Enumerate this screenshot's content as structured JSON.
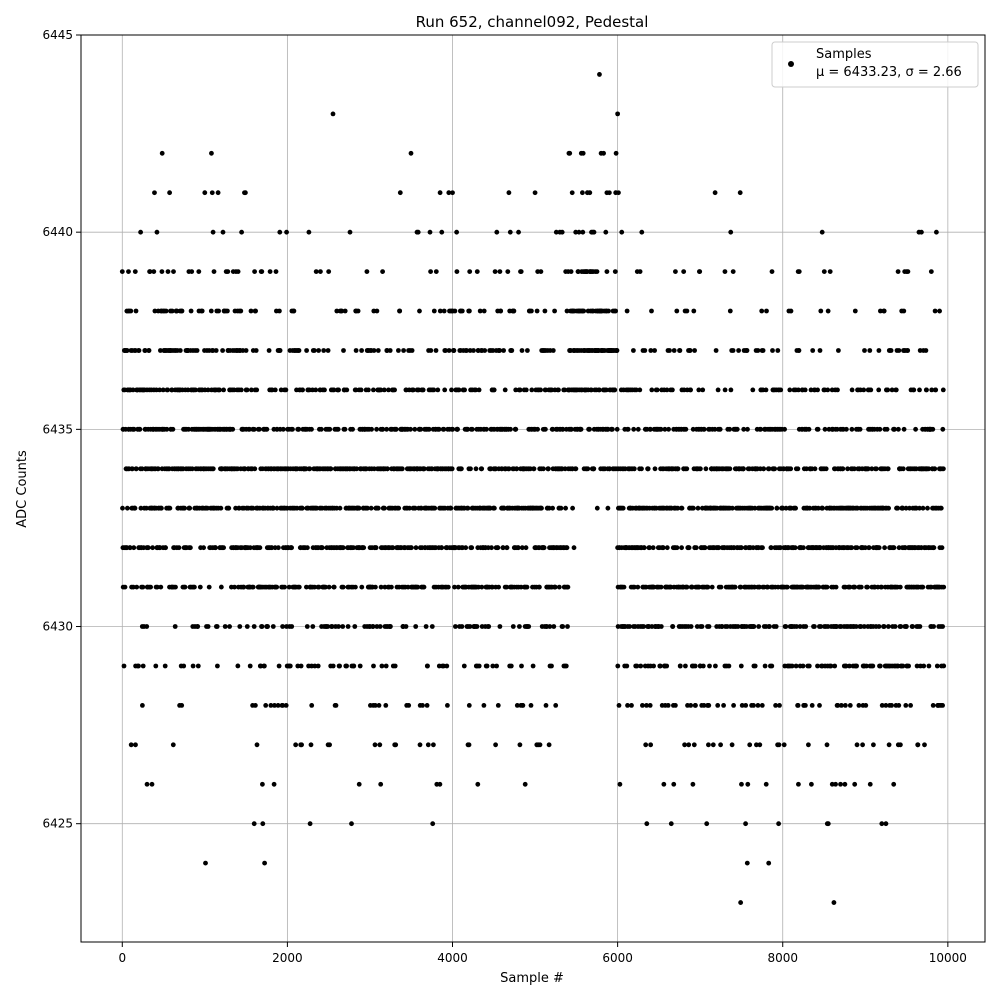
{
  "chart_data": {
    "type": "scatter",
    "title": "Run 652, channel092, Pedestal",
    "xlabel": "Sample #",
    "ylabel": "ADC Counts",
    "xlim": [
      -500,
      10450
    ],
    "ylim": [
      6422,
      6445
    ],
    "x_ticks": [
      0,
      2000,
      4000,
      6000,
      8000,
      10000
    ],
    "y_ticks": [
      6425,
      6430,
      6435,
      6440,
      6445
    ],
    "grid": true,
    "legend_position": "top-right",
    "marker_color": "#000000",
    "series": [
      {
        "name": "Samples",
        "stats_label": "μ = 6433.23, σ = 2.66",
        "mean": 6433.23,
        "std": 2.66,
        "x": [
          30,
          55,
          75,
          160,
          300,
          360,
          390,
          420,
          480,
          600,
          900,
          1000,
          1080,
          1090,
          1100,
          1120,
          1200,
          1300,
          1400,
          1480,
          1500,
          1600,
          1700,
          1800,
          1990,
          2000,
          2100,
          2400,
          2500,
          2800,
          2870,
          3000,
          3130,
          3300,
          3400,
          3570,
          3600,
          3760,
          3870,
          4000,
          4050,
          4100,
          4200,
          4300,
          4500,
          4700,
          4800,
          5000,
          5100,
          5170,
          5250,
          5300,
          5410,
          5420,
          5450,
          5560,
          5600,
          5700,
          5760,
          5780,
          5800,
          5830,
          5870,
          5900,
          6000,
          6010,
          6050,
          6120,
          6200,
          6300,
          6400,
          6560,
          6600,
          6650,
          6680,
          6700,
          6800,
          7000,
          7100,
          7200,
          7300,
          7370,
          7400,
          7490,
          7500,
          7550,
          7600,
          7700,
          7800,
          7830,
          7870,
          7950,
          8100,
          8190,
          8200,
          8300,
          8400,
          8540,
          8550,
          8600,
          8620,
          8640,
          8700,
          8900,
          9000,
          9060,
          9200,
          9250,
          9300,
          9400,
          9500,
          9650,
          9680,
          9800,
          9900,
          9950
        ],
        "y": [
          6437,
          6438,
          6439,
          6427,
          6426,
          6426,
          6441,
          6440,
          6439,
          6436,
          6434,
          6433,
          6442,
          6441,
          6440,
          6432,
          6431,
          6430,
          6429,
          6441,
          6436,
          6435,
          6434,
          6428,
          6440,
          6433,
          6427,
          6439,
          6439,
          6432,
          6426,
          6431,
          6426,
          6427,
          6430,
          6440,
          6438,
          6425,
          6440,
          6441,
          6440,
          6437,
          6427,
          6439,
          6436,
          6440,
          6440,
          6441,
          6435,
          6427,
          6428,
          6440,
          6442,
          6442,
          6441,
          6442,
          6439,
          6440,
          6438,
          6444,
          6442,
          6442,
          6441,
          6441,
          6443,
          6441,
          6440,
          6428,
          6434,
          6433,
          6427,
          6426,
          6431,
          6425,
          6426,
          6439,
          6439,
          6429,
          6427,
          6430,
          6439,
          6440,
          6439,
          6423,
          6426,
          6425,
          6427,
          6428,
          6426,
          6424,
          6439,
          6425,
          6438,
          6426,
          6439,
          6431,
          6432,
          6425,
          6438,
          6426,
          6423,
          6426,
          6426,
          6427,
          6434,
          6426,
          6425,
          6425,
          6437,
          6427,
          6439,
          6440,
          6440,
          6439,
          6438,
          6429
        ],
        "point_count": 10000
      }
    ]
  }
}
